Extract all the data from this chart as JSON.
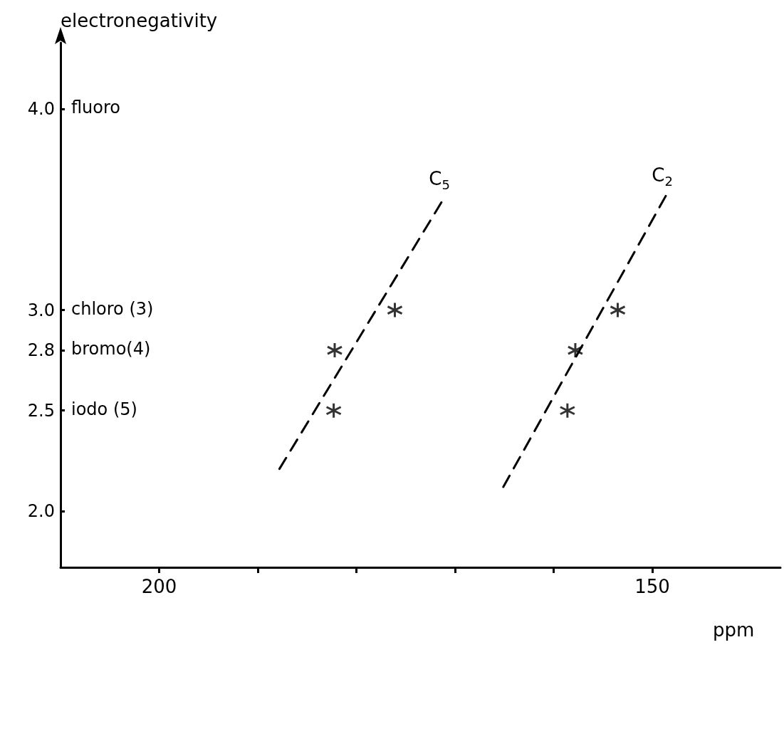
{
  "chart_data": {
    "type": "scatter",
    "xlabel": "ppm",
    "ylabel": "electronegativity",
    "xlim": [
      210,
      137
    ],
    "xticks": [
      200,
      {
        "value": 190,
        "label": null
      },
      {
        "value": 180,
        "label": null
      },
      {
        "value": 170,
        "label": null
      },
      {
        "value": 160,
        "label": null
      },
      150
    ],
    "ylim": [
      1.72,
      4.33
    ],
    "yticks": [
      {
        "value": 4,
        "label": "4.0"
      },
      {
        "value": 3,
        "label": "3.0"
      },
      2.8,
      2.5,
      {
        "value": 2,
        "label": "2.0"
      }
    ],
    "grid": false,
    "marker": "cross",
    "series": [
      {
        "color": "#000000",
        "x": [
          182.2,
          182.3,
          176.1
        ],
        "values": [
          2.8,
          2.5,
          3.0
        ]
      },
      {
        "color": "#000000",
        "x": [
          157.8,
          158.6,
          153.5
        ],
        "values": [
          2.8,
          2.5,
          3.0
        ]
      },
      {
        "type": "line",
        "name": "C$_{5}$",
        "color": "#000000",
        "marker": "none",
        "line_style": "dashed",
        "x": [
          187.8,
          171.2
        ],
        "values": [
          2.21,
          3.55
        ]
      },
      {
        "type": "line",
        "name": "C$_{2}$",
        "color": "#000000",
        "marker": "none",
        "line_style": "dashed",
        "x": [
          165.1,
          148.6
        ],
        "values": [
          2.12,
          3.57
        ]
      }
    ],
    "annotations": [
      "fluoro",
      "chloro (3)",
      "bromo(4)",
      "iodo (5)"
    ]
  }
}
